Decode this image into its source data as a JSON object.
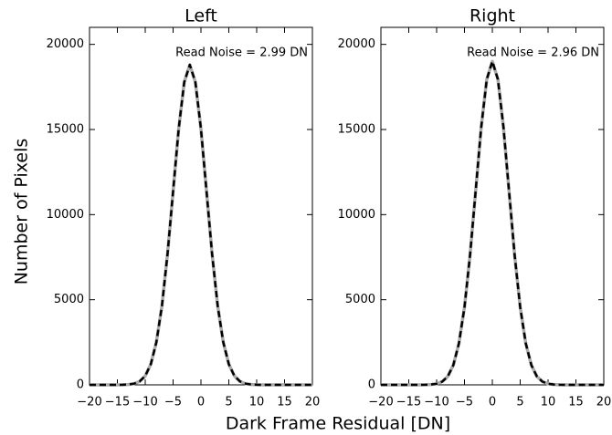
{
  "xlabel": "Dark Frame Residual [DN]",
  "ylabel": "Number of Pixels",
  "chart_data": [
    {
      "type": "line",
      "title": "Left",
      "annotation": "Read Noise = 2.99 DN",
      "x": [
        -20,
        -19,
        -18,
        -17,
        -16,
        -15,
        -14,
        -13,
        -12,
        -11,
        -10,
        -9,
        -8,
        -7,
        -6,
        -5,
        -4,
        -3,
        -2,
        -1,
        0,
        1,
        2,
        3,
        4,
        5,
        6,
        7,
        8,
        9,
        10,
        11,
        12,
        13,
        14,
        15,
        16,
        17,
        18,
        19,
        20
      ],
      "series": [
        {
          "color": "#aaaaaa",
          "linestyle": "solid",
          "values": [
            0,
            0,
            0,
            0,
            0,
            1,
            6,
            22,
            70,
            203,
            525,
            1213,
            2510,
            4644,
            7683,
            11364,
            15031,
            17777,
            18800,
            17777,
            15031,
            11364,
            7683,
            4644,
            2510,
            1213,
            525,
            203,
            70,
            22,
            6,
            1,
            0,
            0,
            0,
            0,
            0,
            0,
            0,
            0,
            0
          ]
        },
        {
          "color": "#000000",
          "linestyle": "dashed",
          "values": [
            0,
            0,
            0,
            0,
            0,
            1,
            6,
            22,
            70,
            203,
            525,
            1213,
            2510,
            4644,
            7683,
            11364,
            15031,
            17777,
            18800,
            17777,
            15031,
            11364,
            7683,
            4644,
            2510,
            1213,
            525,
            203,
            70,
            22,
            6,
            1,
            0,
            0,
            0,
            0,
            0,
            0,
            0,
            0,
            0
          ]
        }
      ],
      "xlim": [
        -20,
        20
      ],
      "ylim": [
        0,
        21000
      ],
      "xticks": [
        {
          "value": -20,
          "label": "−20"
        },
        {
          "value": -15,
          "label": "−15"
        },
        {
          "value": -10,
          "label": "−10"
        },
        {
          "value": -5,
          "label": "−5"
        },
        0,
        5,
        10,
        15,
        20
      ],
      "yticks": [
        0,
        5000,
        10000,
        15000,
        20000
      ]
    },
    {
      "type": "line",
      "title": "Right",
      "annotation": "Read Noise = 2.96 DN",
      "x": [
        -20,
        -19,
        -18,
        -17,
        -16,
        -15,
        -14,
        -13,
        -12,
        -11,
        -10,
        -9,
        -8,
        -7,
        -6,
        -5,
        -4,
        -3,
        -2,
        -1,
        0,
        1,
        2,
        3,
        4,
        5,
        6,
        7,
        8,
        9,
        10,
        11,
        12,
        13,
        14,
        15,
        16,
        17,
        18,
        19,
        20
      ],
      "series": [
        {
          "color": "#aaaaaa",
          "linestyle": "solid",
          "values": [
            0,
            0,
            0,
            0,
            0,
            0,
            0,
            1,
            5,
            19,
            63,
            187,
            492,
            1159,
            2434,
            4560,
            7623,
            11368,
            15122,
            17946,
            19000,
            17946,
            15122,
            11368,
            7623,
            4560,
            2434,
            1159,
            492,
            187,
            63,
            19,
            5,
            1,
            0,
            0,
            0,
            0,
            0,
            0,
            0
          ]
        },
        {
          "color": "#000000",
          "linestyle": "dashed",
          "values": [
            0,
            0,
            0,
            0,
            0,
            0,
            0,
            1,
            5,
            19,
            63,
            187,
            492,
            1159,
            2434,
            4560,
            7623,
            11368,
            15122,
            17946,
            19000,
            17946,
            15122,
            11368,
            7623,
            4560,
            2434,
            1159,
            492,
            187,
            63,
            19,
            5,
            1,
            0,
            0,
            0,
            0,
            0,
            0,
            0
          ]
        }
      ],
      "xlim": [
        -20,
        20
      ],
      "ylim": [
        0,
        21000
      ],
      "xticks": [
        {
          "value": -20,
          "label": "−20"
        },
        {
          "value": -15,
          "label": "−15"
        },
        {
          "value": -10,
          "label": "−10"
        },
        {
          "value": -5,
          "label": "−5"
        },
        0,
        5,
        10,
        15,
        20
      ],
      "yticks": [
        0,
        5000,
        10000,
        15000,
        20000
      ]
    }
  ]
}
